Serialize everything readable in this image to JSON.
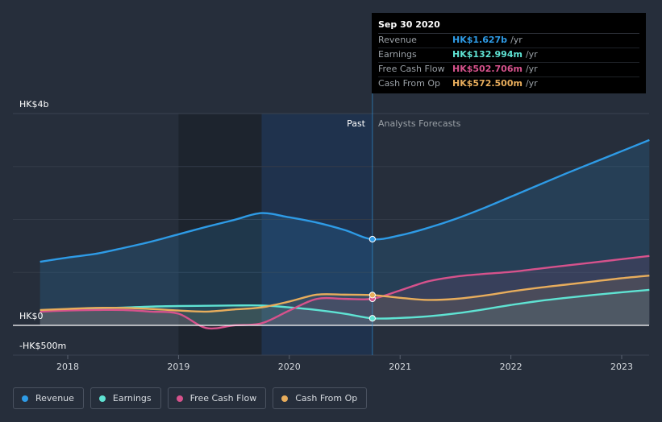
{
  "tooltip": {
    "date": "Sep 30 2020",
    "rows": [
      {
        "label": "Revenue",
        "value": "HK$1.627b",
        "unit": "/yr",
        "color": "#2e9be6"
      },
      {
        "label": "Earnings",
        "value": "HK$132.994m",
        "unit": "/yr",
        "color": "#5fe3d3"
      },
      {
        "label": "Free Cash Flow",
        "value": "HK$502.706m",
        "unit": "/yr",
        "color": "#d6528c"
      },
      {
        "label": "Cash From Op",
        "value": "HK$572.500m",
        "unit": "/yr",
        "color": "#e8ad5c"
      }
    ]
  },
  "legend": [
    {
      "label": "Revenue",
      "color": "#2e9be6"
    },
    {
      "label": "Earnings",
      "color": "#5fe3d3"
    },
    {
      "label": "Free Cash Flow",
      "color": "#d6528c"
    },
    {
      "label": "Cash From Op",
      "color": "#e8ad5c"
    }
  ],
  "chart_data": {
    "type": "line",
    "ylabel_top": "HK$4b",
    "ylabel_zero": "HK$0",
    "ylabel_bottom": "-HK$500m",
    "ylim": [
      -500,
      4000
    ],
    "xlim": [
      2017.7,
      2023.25
    ],
    "gridlines": [
      3000,
      2000,
      1000
    ],
    "x_ticks": [
      {
        "label": "2018",
        "value": 2018
      },
      {
        "label": "2019",
        "value": 2019
      },
      {
        "label": "2020",
        "value": 2020
      },
      {
        "label": "2021",
        "value": 2021
      },
      {
        "label": "2022",
        "value": 2022
      },
      {
        "label": "2023",
        "value": 2023
      }
    ],
    "past_label": "Past",
    "forecast_label": "Analysts Forecasts",
    "divider_x": 2020.75,
    "past_highlight_start": 2019.75,
    "series": [
      {
        "name": "Revenue",
        "color": "#2e9be6",
        "points": [
          [
            2017.75,
            1200
          ],
          [
            2018.0,
            1280
          ],
          [
            2018.25,
            1350
          ],
          [
            2018.5,
            1460
          ],
          [
            2018.75,
            1580
          ],
          [
            2019.0,
            1720
          ],
          [
            2019.25,
            1860
          ],
          [
            2019.5,
            1990
          ],
          [
            2019.75,
            2120
          ],
          [
            2020.0,
            2040
          ],
          [
            2020.25,
            1940
          ],
          [
            2020.5,
            1800
          ],
          [
            2020.75,
            1627
          ],
          [
            2021.0,
            1700
          ],
          [
            2021.25,
            1840
          ],
          [
            2021.5,
            2010
          ],
          [
            2021.75,
            2210
          ],
          [
            2022.0,
            2430
          ],
          [
            2022.25,
            2650
          ],
          [
            2022.5,
            2870
          ],
          [
            2022.75,
            3080
          ],
          [
            2023.0,
            3290
          ],
          [
            2023.25,
            3500
          ]
        ]
      },
      {
        "name": "Earnings",
        "color": "#5fe3d3",
        "points": [
          [
            2017.75,
            280
          ],
          [
            2018.0,
            300
          ],
          [
            2018.25,
            320
          ],
          [
            2018.5,
            335
          ],
          [
            2018.75,
            355
          ],
          [
            2019.0,
            365
          ],
          [
            2019.25,
            370
          ],
          [
            2019.5,
            375
          ],
          [
            2019.75,
            375
          ],
          [
            2020.0,
            340
          ],
          [
            2020.25,
            290
          ],
          [
            2020.5,
            220
          ],
          [
            2020.75,
            133
          ],
          [
            2021.0,
            140
          ],
          [
            2021.25,
            170
          ],
          [
            2021.5,
            225
          ],
          [
            2021.75,
            300
          ],
          [
            2022.0,
            385
          ],
          [
            2022.25,
            460
          ],
          [
            2022.5,
            520
          ],
          [
            2022.75,
            575
          ],
          [
            2023.0,
            625
          ],
          [
            2023.25,
            670
          ]
        ]
      },
      {
        "name": "Free Cash Flow",
        "color": "#d6528c",
        "points": [
          [
            2017.75,
            260
          ],
          [
            2018.0,
            280
          ],
          [
            2018.25,
            290
          ],
          [
            2018.5,
            290
          ],
          [
            2018.75,
            260
          ],
          [
            2019.0,
            220
          ],
          [
            2019.25,
            -50
          ],
          [
            2019.5,
            0
          ],
          [
            2019.75,
            40
          ],
          [
            2020.0,
            280
          ],
          [
            2020.25,
            500
          ],
          [
            2020.5,
            500
          ],
          [
            2020.75,
            503
          ],
          [
            2021.0,
            660
          ],
          [
            2021.25,
            830
          ],
          [
            2021.5,
            920
          ],
          [
            2021.75,
            970
          ],
          [
            2022.0,
            1010
          ],
          [
            2022.25,
            1070
          ],
          [
            2022.5,
            1130
          ],
          [
            2022.75,
            1190
          ],
          [
            2023.0,
            1250
          ],
          [
            2023.25,
            1310
          ]
        ]
      },
      {
        "name": "Cash From Op",
        "color": "#e8ad5c",
        "points": [
          [
            2017.75,
            290
          ],
          [
            2018.0,
            310
          ],
          [
            2018.25,
            330
          ],
          [
            2018.5,
            330
          ],
          [
            2018.75,
            310
          ],
          [
            2019.0,
            280
          ],
          [
            2019.25,
            260
          ],
          [
            2019.5,
            300
          ],
          [
            2019.75,
            340
          ],
          [
            2020.0,
            450
          ],
          [
            2020.25,
            580
          ],
          [
            2020.5,
            580
          ],
          [
            2020.75,
            572
          ],
          [
            2021.0,
            520
          ],
          [
            2021.25,
            480
          ],
          [
            2021.5,
            500
          ],
          [
            2021.75,
            560
          ],
          [
            2022.0,
            640
          ],
          [
            2022.25,
            710
          ],
          [
            2022.5,
            770
          ],
          [
            2022.75,
            830
          ],
          [
            2023.0,
            890
          ],
          [
            2023.25,
            940
          ]
        ]
      }
    ]
  }
}
